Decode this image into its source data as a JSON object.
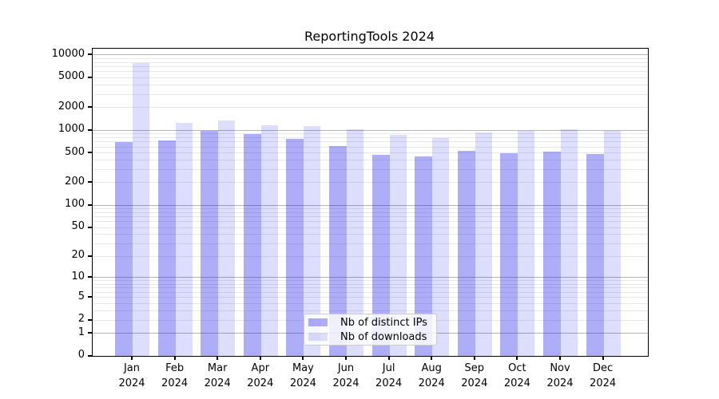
{
  "chart_data": {
    "type": "bar",
    "title": "ReportingTools 2024",
    "categories": [
      "Jan",
      "Feb",
      "Mar",
      "Apr",
      "May",
      "Jun",
      "Jul",
      "Aug",
      "Sep",
      "Oct",
      "Nov",
      "Dec"
    ],
    "year_label": "2024",
    "series": [
      {
        "name": "Nb of distinct IPs",
        "color": "rgba(30,30,235,0.36)",
        "values": [
          700,
          730,
          970,
          890,
          765,
          610,
          470,
          445,
          535,
          490,
          515,
          485
        ]
      },
      {
        "name": "Nb of downloads",
        "color": "rgba(30,30,235,0.15)",
        "values": [
          7800,
          1250,
          1340,
          1170,
          1150,
          1020,
          860,
          790,
          940,
          970,
          1020,
          970
        ]
      }
    ],
    "yscale": "log1p",
    "y_ticks": [
      0,
      1,
      2,
      5,
      10,
      20,
      50,
      100,
      200,
      500,
      1000,
      2000,
      5000,
      10000
    ],
    "y_tick_labels": [
      "0",
      "1",
      "2",
      "5",
      "10",
      "20",
      "50",
      "100",
      "200",
      "500",
      "1000",
      "2000",
      "5000",
      "10000"
    ],
    "ylim": [
      0,
      12000
    ],
    "xlabel": "",
    "ylabel": "",
    "grid": {
      "orientation": "horizontal",
      "major_color": "#b3b3b3",
      "minor_color": "#e8e8e8",
      "major_at": [
        1,
        10,
        100,
        1000,
        10000
      ],
      "minor_rule": "2-9 per decade"
    },
    "legend_position": "lower center"
  },
  "legend": {
    "items": [
      {
        "label": "Nb of distinct IPs"
      },
      {
        "label": "Nb of downloads"
      }
    ]
  },
  "colors": {
    "ip_bar": "rgba(30,30,235,0.36)",
    "dl_bar": "rgba(30,30,235,0.15)",
    "spine": "#000000",
    "background": "#ffffff"
  }
}
